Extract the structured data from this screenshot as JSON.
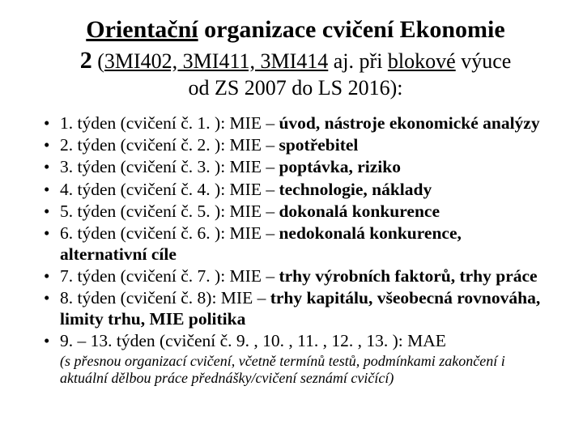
{
  "title": {
    "line1_underlined": "Orientační",
    "line1_rest": " organizace cvičení Ekonomie",
    "line2_big": "2",
    "line2_paren_open": " (",
    "line2_codes": "3MI402, 3MI411, 3MI414",
    "line2_mid": " aj. při ",
    "line2_blok": "blokové",
    "line2_end": " výuce",
    "line3": "od ZS 2007 do LS 2016):"
  },
  "items": [
    {
      "prefix": "1. týden (cvičení č. 1. ): MIE – ",
      "bold": "úvod, nástroje ekonomické analýzy"
    },
    {
      "prefix": "2. týden (cvičení č. 2. ): MIE – ",
      "bold": "spotřebitel"
    },
    {
      "prefix": "3. týden (cvičení č. 3. ): MIE – ",
      "bold": "poptávka, riziko"
    },
    {
      "prefix": "4. týden (cvičení č. 4. ): MIE – ",
      "bold": "technologie, náklady"
    },
    {
      "prefix": "5. týden (cvičení č. 5. ): MIE – ",
      "bold": "dokonalá konkurence"
    },
    {
      "prefix": "6. týden (cvičení č. 6. ): MIE – ",
      "bold": "nedokonalá konkurence, alternativní cíle"
    },
    {
      "prefix": "7. týden (cvičení č. 7. ): MIE – ",
      "bold": "trhy výrobních faktorů, trhy práce"
    },
    {
      "prefix": "8. týden (cvičení č. 8):  MIE – ",
      "bold": "trhy kapitálu, všeobecná rovnováha, limity trhu, MIE politika"
    },
    {
      "prefix": "9. – 13. týden (cvičení č. 9. , 10. , 11. , 12. , 13. ): MAE",
      "bold": ""
    }
  ],
  "footnote": "(s přesnou organizací cvičení, včetně termínů testů, podmínkami zakončení i aktuální dělbou práce přednášky/cvičení seznámí cvičící)",
  "style": {
    "font": "Times New Roman",
    "bg": "#ffffff",
    "fg": "#000000",
    "title_fontsize": 30,
    "subtitle_fontsize": 26,
    "body_fontsize": 21.5,
    "footnote_fontsize": 18
  }
}
